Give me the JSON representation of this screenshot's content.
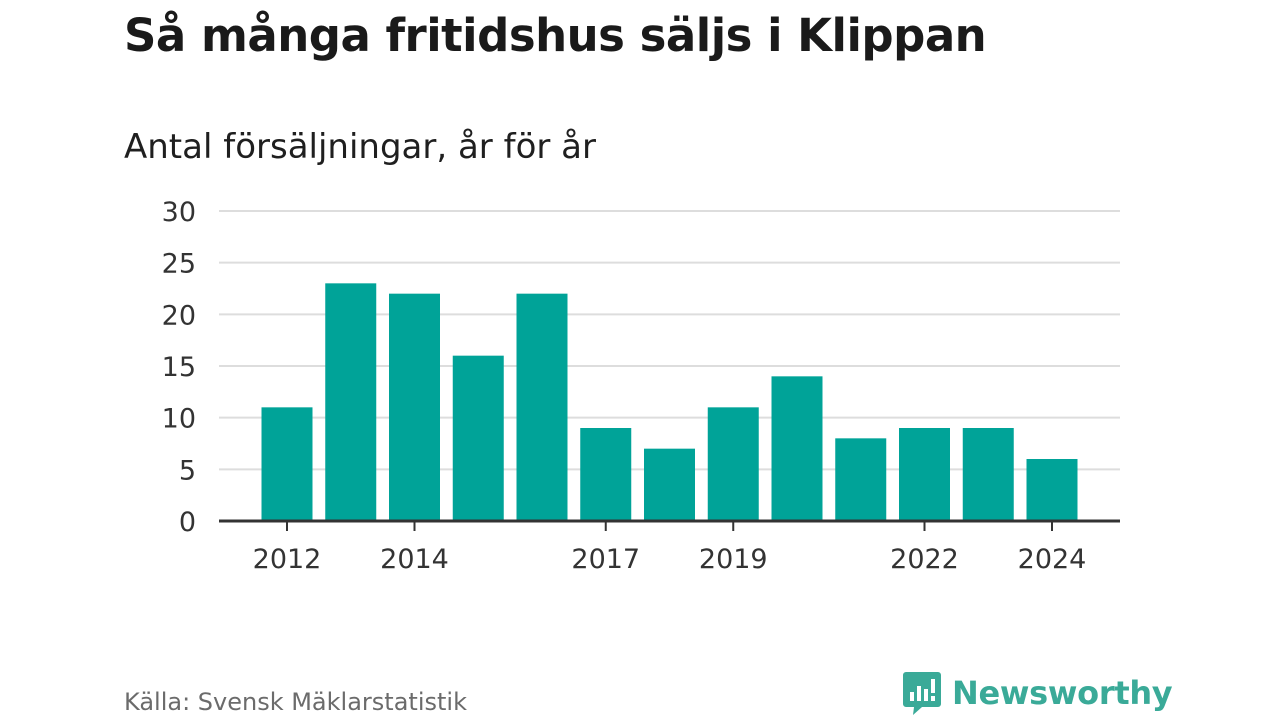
{
  "title": "Så många fritidshus säljs i Klippan",
  "subtitle": "Antal försäljningar, år för år",
  "source": "Källa: Svensk Mäklarstatistik",
  "brand": {
    "name": "Newsworthy",
    "color": "#3aaa98"
  },
  "colors": {
    "bar": "#00a398",
    "grid": "#dddddd",
    "axis": "#333333"
  },
  "chart_data": {
    "type": "bar",
    "categories": [
      "2012",
      "2013",
      "2014",
      "2015",
      "2016",
      "2017",
      "2018",
      "2019",
      "2020",
      "2021",
      "2022",
      "2023",
      "2024"
    ],
    "values": [
      11,
      23,
      22,
      16,
      22,
      9,
      7,
      11,
      14,
      8,
      9,
      9,
      6
    ],
    "x_tick_labels": [
      "2012",
      "2014",
      "2017",
      "2019",
      "2022",
      "2024"
    ],
    "y_ticks": [
      0,
      5,
      10,
      15,
      20,
      25,
      30
    ],
    "ylim": [
      0,
      30
    ],
    "title": "Så många fritidshus säljs i Klippan",
    "subtitle": "Antal försäljningar, år för år",
    "xlabel": "",
    "ylabel": "",
    "grid": true,
    "legend": "none"
  }
}
